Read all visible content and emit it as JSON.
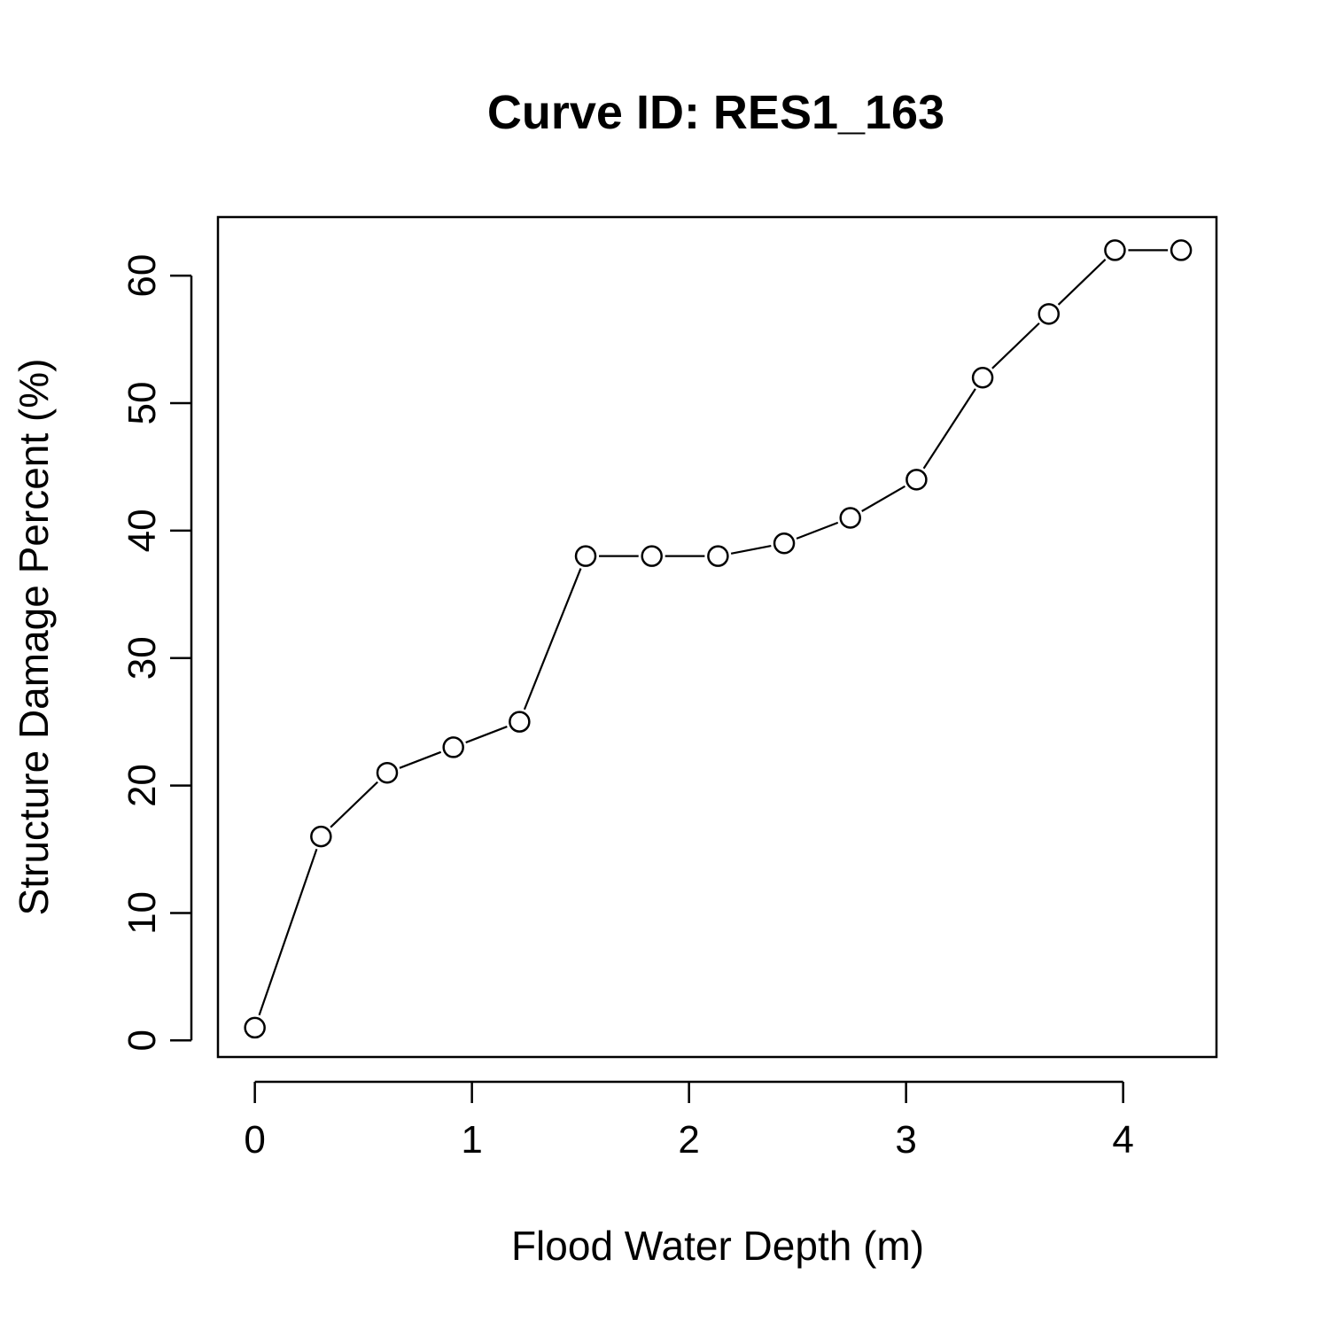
{
  "chart_data": {
    "type": "line",
    "title": "Curve ID: RES1_163",
    "xlabel": "Flood Water Depth (m)",
    "ylabel": "Structure Damage Percent (%)",
    "x": [
      0,
      0.3048,
      0.6096,
      0.9144,
      1.2192,
      1.524,
      1.8288,
      2.1336,
      2.4384,
      2.7432,
      3.048,
      3.3528,
      3.6576,
      3.9624,
      4.2672
    ],
    "series": [
      {
        "values": [
          1,
          16,
          21,
          23,
          25,
          38,
          38,
          38,
          39,
          41,
          44,
          52,
          57,
          62,
          62
        ]
      }
    ],
    "xlim": [
      -0.17,
      4.43
    ],
    "ylim": [
      -1.3,
      64.6
    ],
    "xticks": [
      0,
      1,
      2,
      3,
      4
    ],
    "yticks": [
      0,
      10,
      20,
      30,
      40,
      50,
      60
    ],
    "grid": false,
    "legend": "none",
    "marker": "open-circle",
    "line_style": "b"
  }
}
